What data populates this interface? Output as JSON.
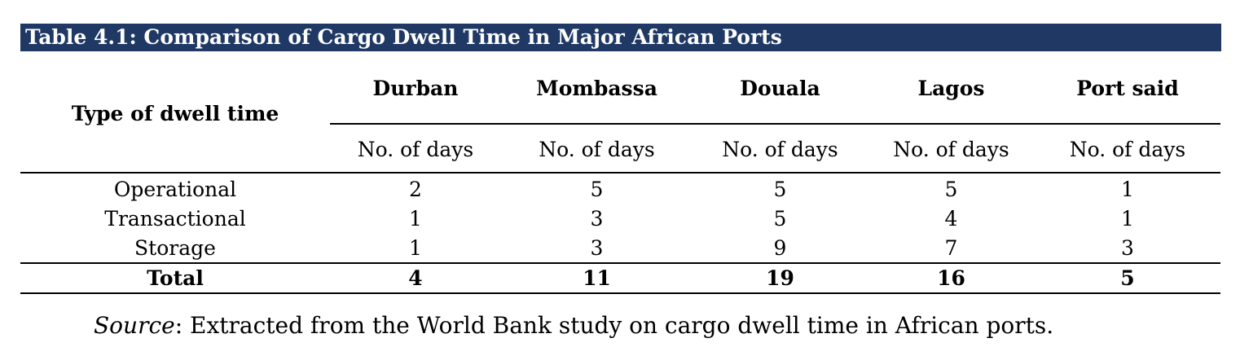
{
  "title": "Table 4.1: Comparison of Cargo Dwell Time in Major African Ports",
  "row_header": "Type of dwell time",
  "ports": [
    "Durban",
    "Mombassa",
    "Douala",
    "Lagos",
    "Port said"
  ],
  "unit_label": "No. of days",
  "rows": [
    {
      "label": "Operational",
      "values": [
        "2",
        "5",
        "5",
        "5",
        "1"
      ]
    },
    {
      "label": "Transactional",
      "values": [
        "1",
        "3",
        "5",
        "4",
        "1"
      ]
    },
    {
      "label": "Storage",
      "values": [
        "1",
        "3",
        "9",
        "7",
        "3"
      ]
    }
  ],
  "total": {
    "label": "Total",
    "values": [
      "4",
      "11",
      "19",
      "16",
      "5"
    ]
  },
  "source": {
    "lead": "Source",
    "text": ": Extracted from the World Bank study on cargo dwell time in African ports."
  },
  "colors": {
    "title_bar": "#1f3864",
    "title_text": "#ffffff"
  }
}
